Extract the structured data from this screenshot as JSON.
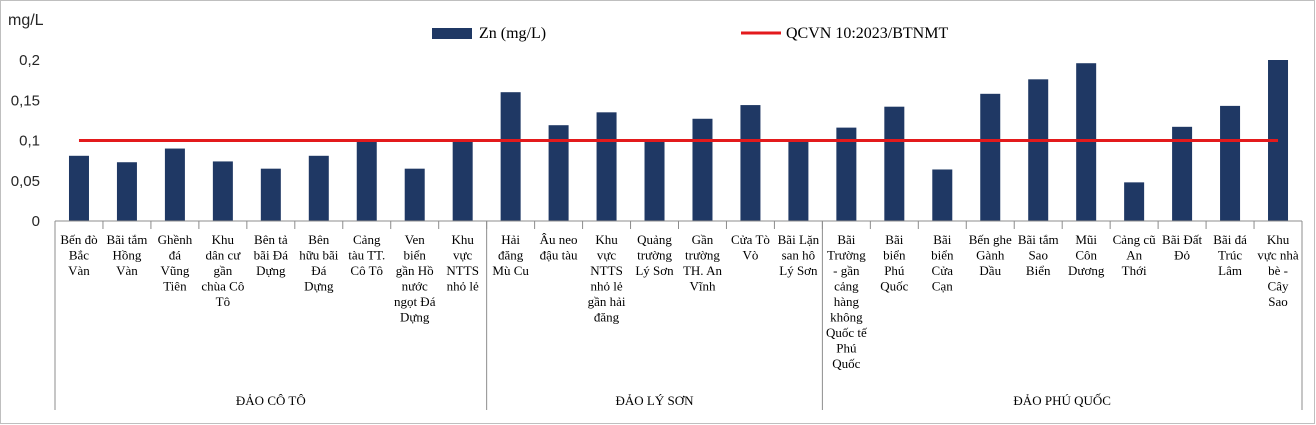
{
  "chart_data": {
    "type": "bar",
    "ylabel": "mg/L",
    "ylim": [
      0,
      0.2
    ],
    "yticks": [
      "0",
      "0,05",
      "0,1",
      "0,15",
      "0,2"
    ],
    "grid": false,
    "legend_position": "top",
    "colors": {
      "bar": "#1f3864",
      "line": "#e31a1c"
    },
    "series": [
      {
        "name": "Zn (mg/L)",
        "type": "bar",
        "values": [
          0.081,
          0.073,
          0.09,
          0.074,
          0.065,
          0.081,
          0.1,
          0.065,
          0.1,
          0.16,
          0.119,
          0.135,
          0.1,
          0.127,
          0.144,
          0.1,
          0.116,
          0.142,
          0.064,
          0.158,
          0.176,
          0.196,
          0.048,
          0.117,
          0.143,
          0.2
        ]
      },
      {
        "name": "QCVN 10:2023/BTNMT",
        "type": "line",
        "value": 0.1
      }
    ],
    "categories": [
      [
        "Bến đò",
        "Bắc",
        "Vàn"
      ],
      [
        "Bãi tắm",
        "Hồng",
        "Vàn"
      ],
      [
        "Ghềnh",
        "đá",
        "Vũng",
        "Tiên"
      ],
      [
        "Khu",
        "dân cư",
        "gần",
        "chùa Cô",
        "Tô"
      ],
      [
        "Bên tả",
        "bãi Đá",
        "Dựng"
      ],
      [
        "Bên",
        "hữu bãi",
        "Đá",
        "Dựng"
      ],
      [
        "Cảng",
        "tàu TT.",
        "Cô Tô"
      ],
      [
        "Ven",
        "biển",
        "gần Hồ",
        "nước",
        "ngọt Đá",
        "Dựng"
      ],
      [
        "Khu",
        "vực",
        "NTTS",
        "nhỏ lẻ"
      ],
      [
        "Hải",
        "đăng",
        "Mù Cu"
      ],
      [
        "Âu neo",
        "đậu tàu"
      ],
      [
        "Khu",
        "vực",
        "NTTS",
        "nhỏ lẻ",
        "gần hải",
        "đăng"
      ],
      [
        "Quảng",
        "trường",
        "Lý Sơn"
      ],
      [
        "Gần",
        "trường",
        "TH. An",
        "Vĩnh"
      ],
      [
        "Cửa Tò",
        "Vò"
      ],
      [
        "Bãi Lặn",
        "san hô",
        "Lý Sơn"
      ],
      [
        "Bãi",
        "Trường",
        "- gần",
        "cảng",
        "hàng",
        "không",
        "Quốc tế",
        "Phú",
        "Quốc"
      ],
      [
        "Bãi",
        "biển",
        "Phú",
        "Quốc"
      ],
      [
        "Bãi",
        "biển",
        "Cửa",
        "Cạn"
      ],
      [
        "Bến ghe",
        "Gành",
        "Dầu"
      ],
      [
        "Bãi tắm",
        "Sao",
        "Biển"
      ],
      [
        "Mũi",
        "Côn",
        "Dương"
      ],
      [
        "Cảng cũ",
        "An",
        "Thới"
      ],
      [
        "Bãi Đất",
        "Đỏ"
      ],
      [
        "Bãi đá",
        "Trúc",
        "Lâm"
      ],
      [
        "Khu",
        "vực nhà",
        "bè -",
        "Cây",
        "Sao"
      ]
    ],
    "groups": [
      {
        "label": "ĐẢO CÔ TÔ",
        "start": 0,
        "end": 8
      },
      {
        "label": "ĐẢO LÝ SƠN",
        "start": 9,
        "end": 15
      },
      {
        "label": "ĐẢO PHÚ QUỐC",
        "start": 16,
        "end": 25
      }
    ]
  }
}
